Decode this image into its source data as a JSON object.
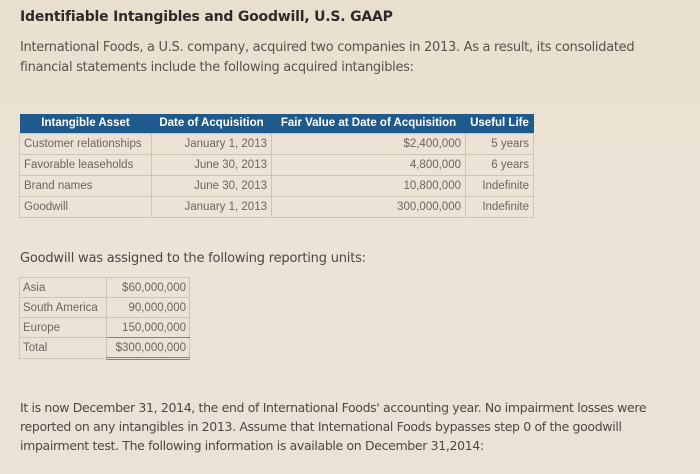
{
  "document": {
    "title": "Identifiable Intangibles and Goodwill, U.S. GAAP",
    "intro": "International Foods, a U.S. company, acquired two companies in 2013. As a result, its consolidated financial statements include the following acquired intangibles:",
    "intangibles_table": {
      "headers": [
        "Intangible Asset",
        "Date of Acquisition",
        "Fair Value at Date of Acquisition",
        "Useful Life"
      ],
      "header_color": "#1f5a8c",
      "rows": [
        {
          "asset": "Customer relationships",
          "date": "January 1, 2013",
          "fair_value": "$2,400,000",
          "useful_life": "5 years"
        },
        {
          "asset": "Favorable leaseholds",
          "date": "June 30, 2013",
          "fair_value": "4,800,000",
          "useful_life": "6 years"
        },
        {
          "asset": "Brand names",
          "date": "June 30, 2013",
          "fair_value": "10,800,000",
          "useful_life": "Indefinite"
        },
        {
          "asset": "Goodwill",
          "date": "January 1, 2013",
          "fair_value": "300,000,000",
          "useful_life": "Indefinite"
        }
      ]
    },
    "goodwill_heading": "Goodwill was assigned to the following reporting units:",
    "reporting_units": [
      {
        "unit": "Asia",
        "amount": "$60,000,000"
      },
      {
        "unit": "South America",
        "amount": "90,000,000"
      },
      {
        "unit": "Europe",
        "amount": "150,000,000"
      },
      {
        "unit": "Total",
        "amount": "$300,000,000"
      }
    ],
    "closing": "It is now December 31, 2014, the end of International Foods' accounting year. No impairment losses were reported on any intangibles in 2013. Assume that International Foods bypasses step 0 of the goodwill impairment test. The following information is available on December 31,2014:"
  }
}
